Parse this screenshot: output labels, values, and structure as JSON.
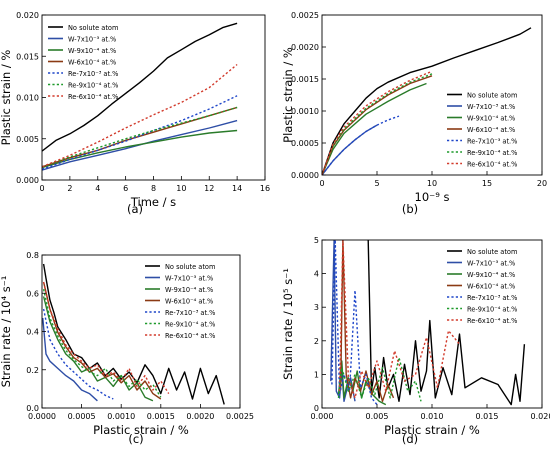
{
  "figure_labels": [
    "(a)",
    "(b)",
    "(c)",
    "(d)"
  ],
  "colors": {
    "No solute atom": "#000000",
    "W-7x10-3": "#2e4ea6",
    "W-9x10-4": "#2a7b2a",
    "W-6x10-4": "#8b3a14",
    "Re-7x10-3": "#1f46c9",
    "Re-9x10-4": "#1e9a2b",
    "Re-6x10-4": "#d23a2b"
  },
  "chart_data": [
    {
      "panel": "a",
      "type": "line",
      "xlabel": "Time / s",
      "ylabel": "Plastic strain / %",
      "xlim": [
        0,
        16
      ],
      "ylim": [
        0,
        0.02
      ],
      "xticks": [
        "0",
        "2",
        "4",
        "6",
        "8",
        "10",
        "12",
        "14",
        "16"
      ],
      "yticks": [
        "0.000",
        "0.005",
        "0.010",
        "0.015",
        "0.020"
      ],
      "legend_position": "upper-left",
      "legend": [
        "No solute atom",
        "W-7x10⁻³ at.%",
        "W-9x10⁻⁴ at.%",
        "W-6x10⁻⁴ at.%",
        "Re-7x10⁻³ at.%",
        "Re-9x10⁻⁴ at.%",
        "Re-6x10⁻⁴ at.%"
      ],
      "series": [
        {
          "name": "No solute atom",
          "dash": "solid",
          "x": [
            0,
            1,
            2,
            3,
            4,
            5,
            6,
            7,
            8,
            9,
            10,
            11,
            12,
            13,
            14
          ],
          "y": [
            0.0035,
            0.0048,
            0.0056,
            0.0066,
            0.0078,
            0.0092,
            0.0105,
            0.0118,
            0.0132,
            0.0148,
            0.0158,
            0.0168,
            0.0176,
            0.0185,
            0.019
          ]
        },
        {
          "name": "W-7x10⁻³ at.%",
          "dash": "solid",
          "x": [
            0,
            2,
            4,
            6,
            8,
            10,
            12,
            14
          ],
          "y": [
            0.0012,
            0.0022,
            0.003,
            0.0038,
            0.0047,
            0.0055,
            0.0063,
            0.0072
          ]
        },
        {
          "name": "W-9x10⁻⁴ at.%",
          "dash": "solid",
          "x": [
            0,
            2,
            4,
            6,
            8,
            10,
            12,
            14
          ],
          "y": [
            0.0015,
            0.0025,
            0.0033,
            0.004,
            0.0046,
            0.0052,
            0.0057,
            0.006
          ]
        },
        {
          "name": "W-6x10⁻⁴ at.%",
          "dash": "solid",
          "x": [
            0,
            2,
            4,
            6,
            8,
            10,
            12,
            14
          ],
          "y": [
            0.0016,
            0.0027,
            0.0036,
            0.0048,
            0.0058,
            0.0068,
            0.0078,
            0.0088
          ]
        },
        {
          "name": "Re-7x10⁻³ at.%",
          "dash": "dotted",
          "x": [
            0,
            2,
            4,
            6,
            8,
            10,
            12,
            14
          ],
          "y": [
            0.0013,
            0.0025,
            0.0036,
            0.0047,
            0.006,
            0.0072,
            0.0086,
            0.0102
          ]
        },
        {
          "name": "Re-9x10⁻⁴ at.%",
          "dash": "dotted",
          "x": [
            0,
            2,
            4,
            6,
            8,
            10,
            12,
            14
          ],
          "y": [
            0.0016,
            0.0028,
            0.0039,
            0.005,
            0.006,
            0.0069,
            0.0078,
            0.0088
          ]
        },
        {
          "name": "Re-6x10⁻⁴ at.%",
          "dash": "dotted",
          "x": [
            0,
            2,
            4,
            6,
            8,
            10,
            12,
            14
          ],
          "y": [
            0.0016,
            0.003,
            0.0046,
            0.0063,
            0.0079,
            0.0094,
            0.0112,
            0.014
          ]
        }
      ]
    },
    {
      "panel": "b",
      "type": "line",
      "xlabel": "10⁻⁹ s",
      "ylabel": "Plastic strain / %",
      "xlim": [
        0,
        20
      ],
      "ylim": [
        0,
        0.0025
      ],
      "xticks": [
        "0",
        "5",
        "10",
        "15",
        "20"
      ],
      "yticks": [
        "0.0000",
        "0.0005",
        "0.0010",
        "0.0015",
        "0.0020",
        "0.0025"
      ],
      "legend_position": "lower-right",
      "legend": [
        "No solute atom",
        "W-7x10⁻³ at.%",
        "W-9x10⁻⁴ at.%",
        "W-6x10⁻⁴ at.%",
        "Re-7x10⁻³ at.%",
        "Re-9x10⁻⁴ at.%",
        "Re-6x10⁻⁴ at.%"
      ],
      "series": [
        {
          "name": "No solute atom",
          "dash": "solid",
          "x": [
            0,
            1,
            2,
            3,
            4,
            5,
            6,
            8,
            10,
            12,
            14,
            16,
            18,
            19
          ],
          "y": [
            0,
            0.0005,
            0.0008,
            0.001,
            0.0012,
            0.00135,
            0.00145,
            0.0016,
            0.0017,
            0.00183,
            0.00195,
            0.00207,
            0.0022,
            0.0023
          ]
        },
        {
          "name": "W-7x10⁻³ at.%",
          "dash": "solid",
          "x": [
            0,
            1,
            2,
            3,
            4,
            5
          ],
          "y": [
            0,
            0.00022,
            0.0004,
            0.00055,
            0.00068,
            0.00078
          ]
        },
        {
          "name": "W-9x10⁻⁴ at.%",
          "dash": "solid",
          "x": [
            0,
            1,
            2,
            4,
            6,
            8,
            9.5
          ],
          "y": [
            0,
            0.0004,
            0.00065,
            0.00095,
            0.00115,
            0.00133,
            0.00143
          ]
        },
        {
          "name": "W-6x10⁻⁴ at.%",
          "dash": "solid",
          "x": [
            0,
            1,
            2,
            4,
            6,
            8,
            10
          ],
          "y": [
            0,
            0.00045,
            0.0007,
            0.00102,
            0.00125,
            0.00143,
            0.00155
          ]
        },
        {
          "name": "Re-7x10⁻³ at.%",
          "dash": "dotted",
          "x": [
            0,
            1,
            2,
            3,
            4,
            5,
            6,
            7
          ],
          "y": [
            0,
            0.00022,
            0.0004,
            0.00055,
            0.00068,
            0.00078,
            0.00086,
            0.00092
          ]
        },
        {
          "name": "Re-9x10⁻⁴ at.%",
          "dash": "dotted",
          "x": [
            0,
            1,
            2,
            4,
            6,
            8,
            10
          ],
          "y": [
            0,
            0.00045,
            0.00072,
            0.00104,
            0.00127,
            0.00145,
            0.00158
          ]
        },
        {
          "name": "Re-6x10⁻⁴ at.%",
          "dash": "dotted",
          "x": [
            0,
            1,
            2,
            4,
            6,
            8,
            10
          ],
          "y": [
            0,
            0.00048,
            0.00075,
            0.00108,
            0.0013,
            0.00148,
            0.00162
          ]
        }
      ]
    },
    {
      "panel": "c",
      "type": "line",
      "xlabel": "Plastic strain / %",
      "ylabel": "Strain rate / 10⁴ s⁻¹",
      "xlim": [
        0,
        0.0025
      ],
      "ylim": [
        0,
        0.85
      ],
      "xticks": [
        "0.0000",
        "0.0005",
        "0.0010",
        "0.0015",
        "0.0020",
        "0.0025"
      ],
      "yticks": [
        "0.0",
        "0.2",
        "0.4",
        "0.6",
        "0.8"
      ],
      "legend_position": "upper-right",
      "legend": [
        "No solute atom",
        "W-7x10⁻³ at.%",
        "W-9x10⁻⁴ at.%",
        "W-6x10⁻⁴ at.%",
        "Re-7x10⁻³ at.%",
        "Re-9x10⁻⁴ at.%",
        "Re-6x10⁻⁴ at.%"
      ],
      "series": [
        {
          "name": "No solute atom",
          "dash": "solid",
          "x": [
            2e-05,
            5e-05,
            0.0001,
            0.00015,
            0.0002,
            0.0003,
            0.0004,
            0.0005,
            0.0006,
            0.0007,
            0.0008,
            0.0009,
            0.001,
            0.0011,
            0.0012,
            0.0013,
            0.0014,
            0.0015,
            0.0016,
            0.0017,
            0.0018,
            0.0019,
            0.002,
            0.0021,
            0.0022,
            0.0023
          ],
          "y": [
            0.8,
            0.72,
            0.6,
            0.53,
            0.45,
            0.38,
            0.3,
            0.28,
            0.22,
            0.25,
            0.18,
            0.22,
            0.16,
            0.2,
            0.14,
            0.24,
            0.18,
            0.08,
            0.22,
            0.1,
            0.2,
            0.05,
            0.22,
            0.08,
            0.18,
            0.02
          ]
        },
        {
          "name": "W-7x10⁻³ at.%",
          "dash": "solid",
          "x": [
            1e-05,
            5e-05,
            0.0001,
            0.0002,
            0.0003,
            0.0004,
            0.0005,
            0.0006,
            0.0007
          ],
          "y": [
            0.5,
            0.3,
            0.26,
            0.22,
            0.18,
            0.15,
            0.1,
            0.08,
            0.04
          ]
        },
        {
          "name": "W-9x10⁻⁴ at.%",
          "dash": "solid",
          "x": [
            2e-05,
            0.0001,
            0.0002,
            0.0003,
            0.0004,
            0.0005,
            0.0006,
            0.0007,
            0.0008,
            0.0009,
            0.001,
            0.0011,
            0.0012,
            0.0013,
            0.0014
          ],
          "y": [
            0.62,
            0.48,
            0.38,
            0.3,
            0.26,
            0.2,
            0.22,
            0.15,
            0.17,
            0.12,
            0.18,
            0.1,
            0.14,
            0.06,
            0.04
          ]
        },
        {
          "name": "W-6x10⁻⁴ at.%",
          "dash": "solid",
          "x": [
            2e-05,
            0.0001,
            0.0002,
            0.0003,
            0.0004,
            0.0005,
            0.0006,
            0.0007,
            0.0008,
            0.0009,
            0.001,
            0.0011,
            0.0012,
            0.0013,
            0.0014,
            0.0015
          ],
          "y": [
            0.7,
            0.55,
            0.42,
            0.34,
            0.28,
            0.25,
            0.2,
            0.22,
            0.17,
            0.19,
            0.14,
            0.18,
            0.1,
            0.15,
            0.08,
            0.05
          ]
        },
        {
          "name": "Re-7x10⁻³ at.%",
          "dash": "dotted",
          "x": [
            2e-05,
            0.0001,
            0.0002,
            0.0003,
            0.0004,
            0.0005,
            0.0006,
            0.0007,
            0.0008,
            0.0009
          ],
          "y": [
            0.55,
            0.38,
            0.3,
            0.24,
            0.2,
            0.16,
            0.12,
            0.1,
            0.07,
            0.05
          ]
        },
        {
          "name": "Re-9x10⁻⁴ at.%",
          "dash": "dotted",
          "x": [
            2e-05,
            0.0001,
            0.0002,
            0.0003,
            0.0004,
            0.0005,
            0.0006,
            0.0007,
            0.0008,
            0.0009,
            0.001,
            0.0011,
            0.0012,
            0.0013,
            0.0014,
            0.0015
          ],
          "y": [
            0.66,
            0.5,
            0.4,
            0.32,
            0.27,
            0.23,
            0.2,
            0.18,
            0.22,
            0.15,
            0.18,
            0.12,
            0.16,
            0.1,
            0.13,
            0.06
          ]
        },
        {
          "name": "Re-6x10⁻⁴ at.%",
          "dash": "dotted",
          "x": [
            2e-05,
            0.0001,
            0.0002,
            0.0003,
            0.0004,
            0.0005,
            0.0006,
            0.0007,
            0.0008,
            0.0009,
            0.001,
            0.0011,
            0.0012,
            0.0013,
            0.0014,
            0.0015,
            0.0016
          ],
          "y": [
            0.7,
            0.55,
            0.44,
            0.35,
            0.3,
            0.26,
            0.22,
            0.24,
            0.18,
            0.2,
            0.15,
            0.22,
            0.12,
            0.18,
            0.1,
            0.15,
            0.08
          ]
        }
      ]
    },
    {
      "panel": "d",
      "type": "line",
      "xlabel": "Plastic strain / %",
      "ylabel": "Strain rate / 10⁵ s⁻¹",
      "xlim": [
        0,
        0.02
      ],
      "ylim": [
        0,
        5
      ],
      "xticks": [
        "0.000",
        "0.005",
        "0.010",
        "0.015",
        "0.020"
      ],
      "yticks": [
        "0",
        "1",
        "2",
        "3",
        "4",
        "5"
      ],
      "legend_position": "upper-right",
      "legend": [
        "No solute atom",
        "W-7x10⁻³ at.%",
        "W-9x10⁻⁴ at.%",
        "W-6x10⁻⁴ at.%",
        "Re-7x10⁻³ at.%",
        "Re-9x10⁻⁴ at.%",
        "Re-6x10⁻⁴ at.%"
      ],
      "series": [
        {
          "name": "No solute atom",
          "dash": "solid",
          "x": [
            0.0042,
            0.0045,
            0.0048,
            0.0052,
            0.0056,
            0.006,
            0.0065,
            0.007,
            0.0075,
            0.008,
            0.0085,
            0.009,
            0.0095,
            0.0098,
            0.0103,
            0.011,
            0.0118,
            0.0125,
            0.013,
            0.0145,
            0.016,
            0.0172,
            0.0176,
            0.018,
            0.0184
          ],
          "y": [
            5,
            0.5,
            1.2,
            0.3,
            1.5,
            0.6,
            1.0,
            0.2,
            1.3,
            0.4,
            2.0,
            0.5,
            1.1,
            2.6,
            0.3,
            1.2,
            0.4,
            2.2,
            0.6,
            0.9,
            0.7,
            0.1,
            1.0,
            0.2,
            1.9
          ]
        },
        {
          "name": "W-7x10⁻³ at.%",
          "dash": "solid",
          "x": [
            0.0008,
            0.0011,
            0.0013,
            0.0016,
            0.0018,
            0.002,
            0.0023,
            0.0026,
            0.003
          ],
          "y": [
            0.8,
            5,
            0.5,
            0.3,
            1.1,
            0.2,
            0.6,
            0.9,
            0.2
          ]
        },
        {
          "name": "W-9x10⁻⁴ at.%",
          "dash": "solid",
          "x": [
            0.0015,
            0.0018,
            0.002,
            0.0024,
            0.0028,
            0.0032,
            0.0036,
            0.004,
            0.0046,
            0.0052,
            0.0058
          ],
          "y": [
            0.4,
            1.4,
            0.3,
            0.9,
            0.5,
            1.1,
            0.3,
            0.8,
            0.4,
            0.2,
            0.1
          ]
        },
        {
          "name": "W-6x10⁻⁴ at.%",
          "dash": "solid",
          "x": [
            0.0017,
            0.0019,
            0.0022,
            0.0026,
            0.003,
            0.0035,
            0.004,
            0.0045,
            0.005,
            0.0055,
            0.006,
            0.0065
          ],
          "y": [
            0.6,
            5,
            1.0,
            0.3,
            0.9,
            0.5,
            1.1,
            0.4,
            0.8,
            0.2,
            0.7,
            0.3
          ]
        },
        {
          "name": "Re-7x10⁻³ at.%",
          "dash": "dotted",
          "x": [
            0.0009,
            0.0012,
            0.0016,
            0.002,
            0.0025,
            0.003,
            0.0035,
            0.004,
            0.0045,
            0.005
          ],
          "y": [
            0.7,
            5,
            0.4,
            1.0,
            0.5,
            3.5,
            0.6,
            1.0,
            0.3,
            0.1
          ]
        },
        {
          "name": "Re-9x10⁻⁴ at.%",
          "dash": "dotted",
          "x": [
            0.0015,
            0.0018,
            0.0024,
            0.003,
            0.0036,
            0.0042,
            0.0048,
            0.0055,
            0.0062,
            0.007,
            0.0078,
            0.0085,
            0.009
          ],
          "y": [
            0.3,
            1.2,
            0.5,
            1.0,
            0.3,
            0.9,
            0.4,
            1.2,
            0.3,
            1.5,
            0.5,
            0.8,
            0.2
          ]
        },
        {
          "name": "Re-6x10⁻⁴ at.%",
          "dash": "dotted",
          "x": [
            0.0016,
            0.0019,
            0.0024,
            0.003,
            0.0036,
            0.0042,
            0.005,
            0.0058,
            0.0066,
            0.0075,
            0.0085,
            0.0095,
            0.0105,
            0.0115,
            0.0125
          ],
          "y": [
            0.5,
            5,
            0.9,
            0.3,
            1.1,
            0.6,
            1.4,
            0.5,
            1.7,
            0.8,
            1.0,
            2.1,
            0.6,
            2.3,
            1.9
          ]
        }
      ]
    }
  ]
}
